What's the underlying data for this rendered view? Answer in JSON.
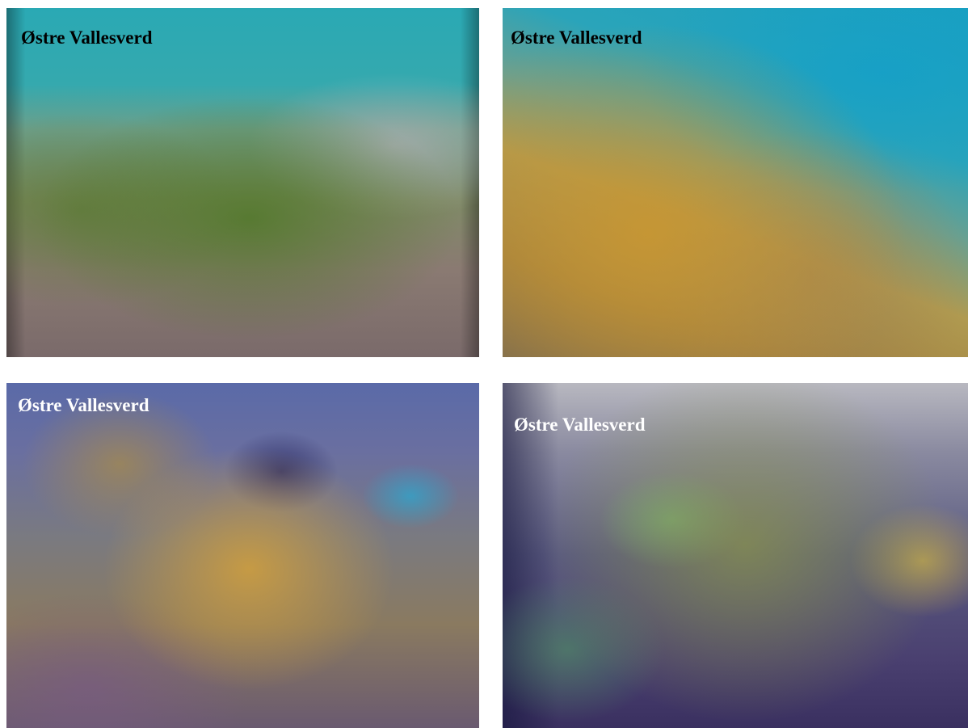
{
  "panels": [
    {
      "label": "Østre Vallesverd"
    },
    {
      "label": "Østre Vallesverd"
    },
    {
      "label": "Østre Vallesverd"
    },
    {
      "label": "Østre Vallesverd"
    }
  ]
}
